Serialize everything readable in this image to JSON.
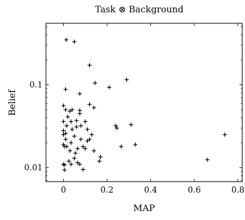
{
  "chart_data": {
    "type": "scatter",
    "title": "Task ⊗ Background",
    "xlabel": "MAP",
    "ylabel": "Belief",
    "xlim": [
      -0.08,
      0.82
    ],
    "ylim": [
      0.0068,
      0.55
    ],
    "yscale": "log",
    "grid": false,
    "marker": "plus",
    "x_ticks": [
      {
        "v": 0,
        "label": "0"
      },
      {
        "v": 0.2,
        "label": "0.2"
      },
      {
        "v": 0.4,
        "label": "0.4"
      },
      {
        "v": 0.6,
        "label": "0.6"
      },
      {
        "v": 0.8,
        "label": "0.8"
      }
    ],
    "y_ticks": [
      {
        "v": 0.01,
        "label": "0.01"
      },
      {
        "v": 0.1,
        "label": "0.1"
      }
    ],
    "points": [
      [
        0.013,
        0.348
      ],
      [
        0.05,
        0.33
      ],
      [
        0.12,
        0.172
      ],
      [
        0.145,
        0.105
      ],
      [
        0.29,
        0.115
      ],
      [
        0.21,
        0.093
      ],
      [
        0.01,
        0.088
      ],
      [
        0.075,
        0.078
      ],
      [
        0.12,
        0.058
      ],
      [
        0.14,
        0.053
      ],
      [
        0.0,
        0.056
      ],
      [
        0.01,
        0.05
      ],
      [
        0.04,
        0.05
      ],
      [
        0.03,
        0.048
      ],
      [
        0.075,
        0.049
      ],
      [
        0.075,
        0.045
      ],
      [
        0.02,
        0.041
      ],
      [
        0.0,
        0.036
      ],
      [
        0.035,
        0.036
      ],
      [
        0.06,
        0.037
      ],
      [
        0.1,
        0.036
      ],
      [
        0.015,
        0.032
      ],
      [
        0.06,
        0.031
      ],
      [
        0.04,
        0.029
      ],
      [
        0.0,
        0.028
      ],
      [
        0.01,
        0.026
      ],
      [
        0.08,
        0.032
      ],
      [
        0.11,
        0.029
      ],
      [
        0.13,
        0.025
      ],
      [
        0.24,
        0.032
      ],
      [
        0.245,
        0.03
      ],
      [
        0.31,
        0.033
      ],
      [
        0.0,
        0.025
      ],
      [
        0.01,
        0.022
      ],
      [
        0.05,
        0.024
      ],
      [
        0.035,
        0.02
      ],
      [
        0.08,
        0.022
      ],
      [
        0.12,
        0.022
      ],
      [
        0.11,
        0.021
      ],
      [
        0.0,
        0.019
      ],
      [
        0.005,
        0.018
      ],
      [
        0.015,
        0.018
      ],
      [
        0.065,
        0.017
      ],
      [
        0.09,
        0.018
      ],
      [
        0.1,
        0.017
      ],
      [
        0.03,
        0.016
      ],
      [
        0.055,
        0.015
      ],
      [
        0.14,
        0.016
      ],
      [
        0.265,
        0.018
      ],
      [
        0.33,
        0.019
      ],
      [
        0.74,
        0.025
      ],
      [
        0.66,
        0.0125
      ],
      [
        0.17,
        0.0135
      ],
      [
        0.165,
        0.012
      ],
      [
        0.025,
        0.012
      ],
      [
        0.05,
        0.013
      ],
      [
        0.035,
        0.011
      ],
      [
        0.065,
        0.0115
      ],
      [
        0.0,
        0.011
      ],
      [
        0.005,
        0.0108
      ],
      [
        0.075,
        0.011
      ],
      [
        0.005,
        0.0094
      ],
      [
        0.09,
        0.0095
      ]
    ]
  }
}
